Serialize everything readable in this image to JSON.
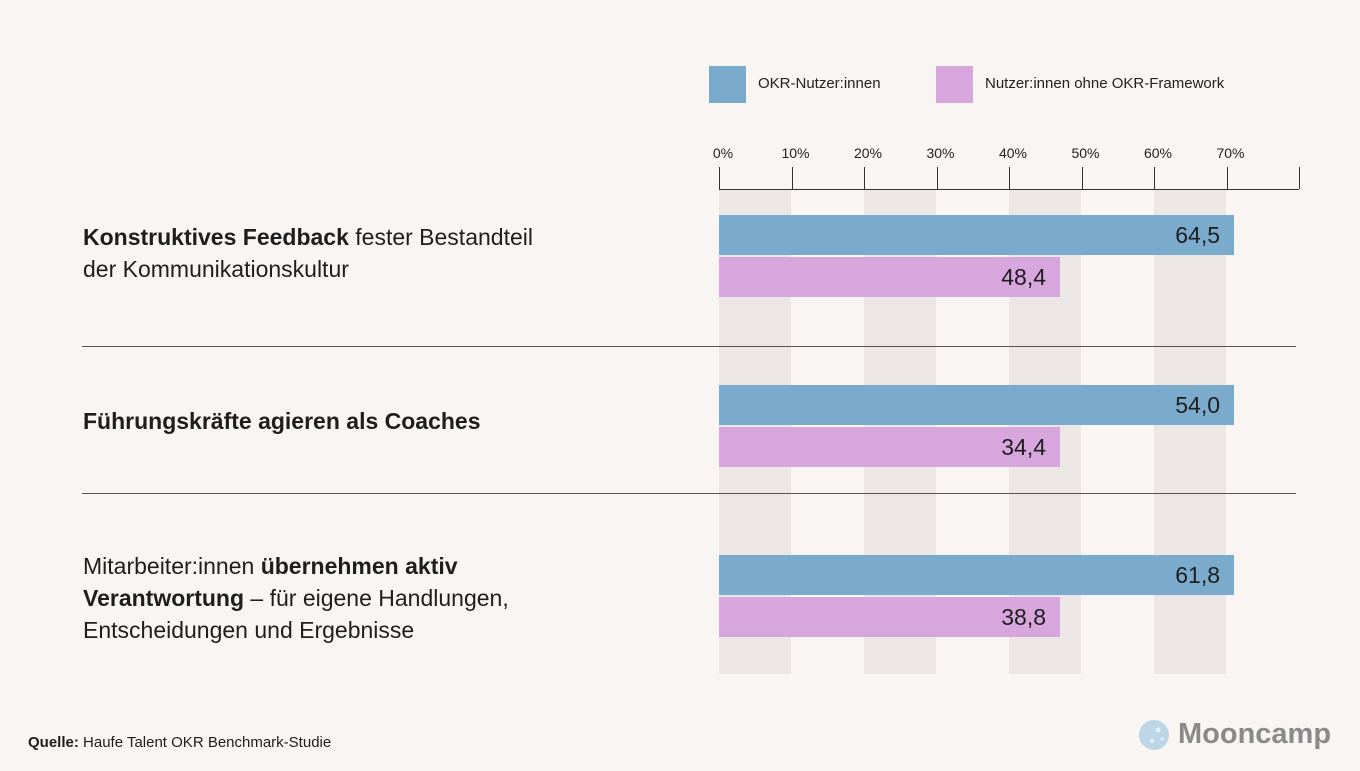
{
  "chart_data": {
    "type": "bar",
    "orientation": "horizontal",
    "xlim": [
      0,
      80
    ],
    "ticks": [
      "0%",
      "10%",
      "20%",
      "30%",
      "40%",
      "50%",
      "60%",
      "70%"
    ],
    "legend_position": "top",
    "series": [
      {
        "name": "OKR-Nutzer:innen",
        "color": "#7aabcd",
        "values": [
          64.5,
          54.0,
          61.8
        ],
        "labels": [
          "64,5",
          "54,0",
          "61,8"
        ]
      },
      {
        "name": "Nutzer:innen ohne OKR-Framework",
        "color": "#d6a6dd",
        "values": [
          48.4,
          34.4,
          38.8
        ],
        "labels": [
          "48,4",
          "34,4",
          "38,8"
        ]
      }
    ],
    "categories": [
      [
        {
          "text": "Konstruktives Feedback",
          "bold": true
        },
        {
          "text": " fester Bestandteil der Kommunikationskultur",
          "bold": false
        }
      ],
      [
        {
          "text": "Führungskräfte agieren als Coaches",
          "bold": true
        }
      ],
      [
        {
          "text": "Mitarbeiter:innen ",
          "bold": false
        },
        {
          "text": "übernehmen aktiv Verantwortung",
          "bold": true
        },
        {
          "text": " – für eigene Handlungen, Entscheidungen und Ergebnisse",
          "bold": false
        }
      ]
    ]
  },
  "source": {
    "label": "Quelle:",
    "text": " Haufe Talent OKR Benchmark-Studie"
  },
  "logo": {
    "text": "Mooncamp"
  }
}
